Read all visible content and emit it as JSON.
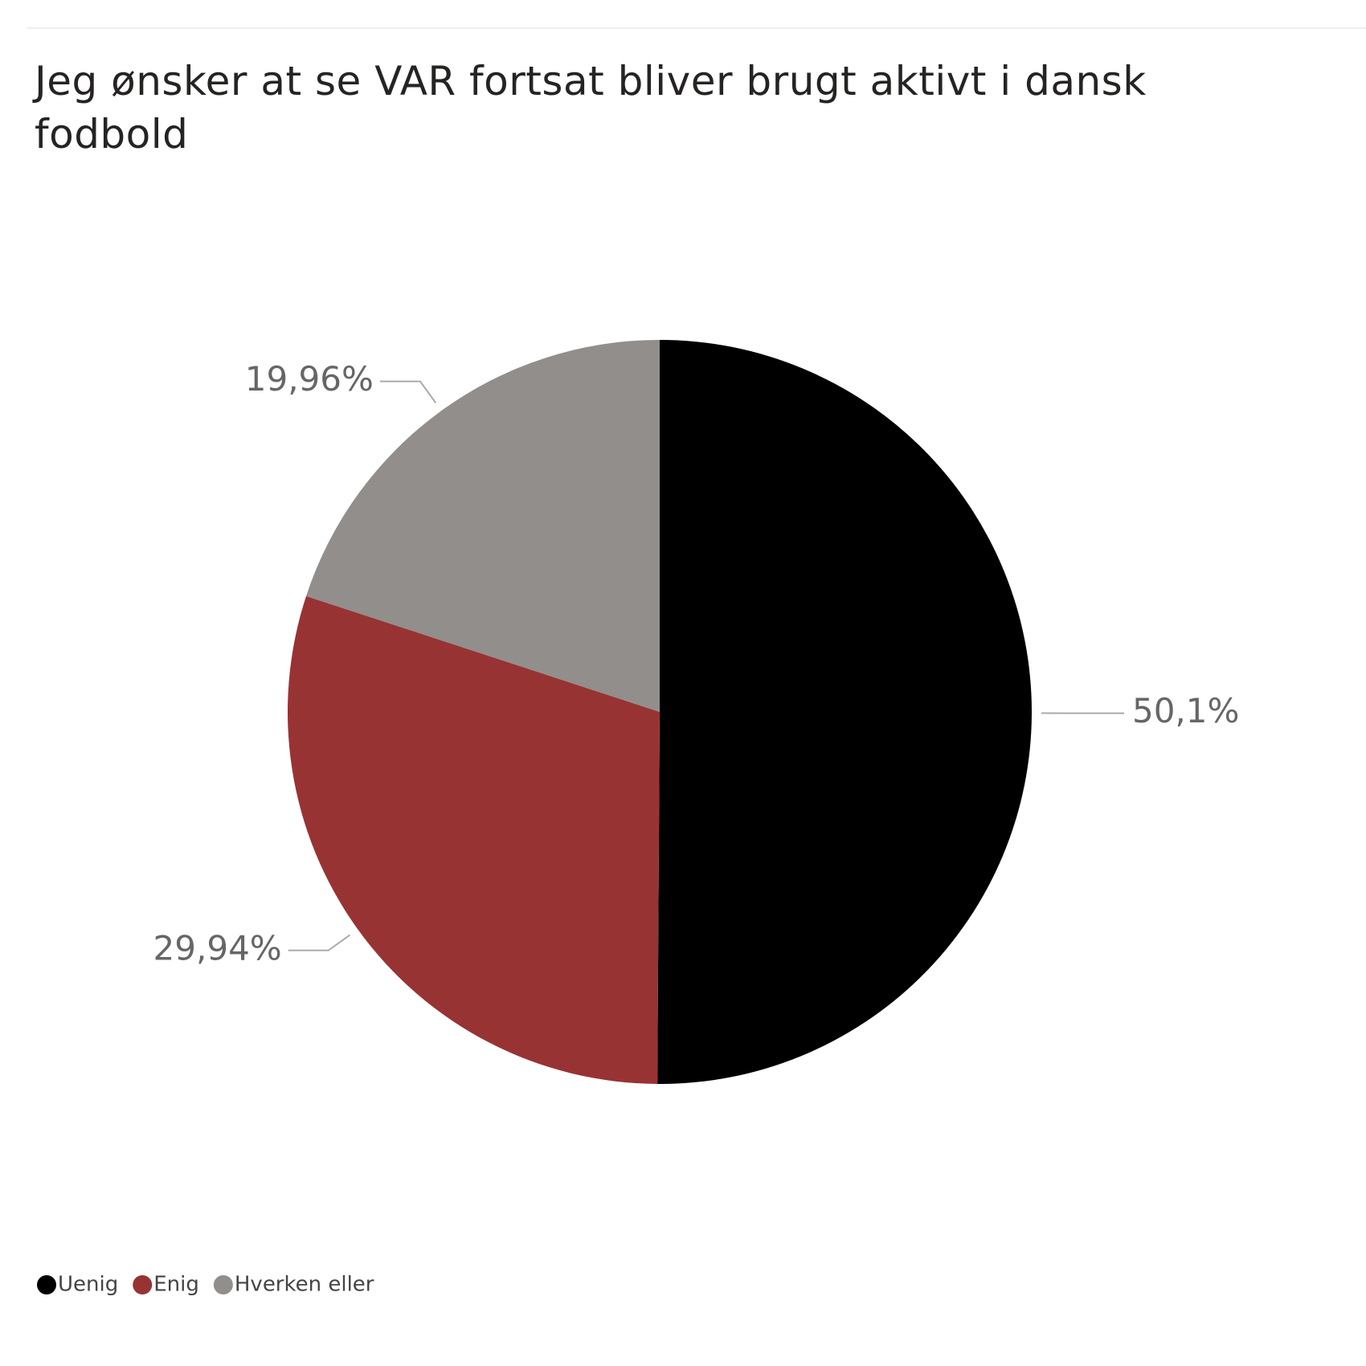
{
  "chart_data": {
    "type": "pie",
    "title": "Jeg ønsker at se VAR fortsat bliver brugt aktivt i dansk fodbold",
    "categories": [
      "Uenig",
      "Enig",
      "Hverken eller"
    ],
    "values": [
      50.1,
      29.94,
      19.96
    ],
    "value_labels": [
      "50,1%",
      "29,94%",
      "19,96%"
    ],
    "colors": [
      "#000000",
      "#983334",
      "#918e8c"
    ],
    "legend": "bottom-left"
  }
}
